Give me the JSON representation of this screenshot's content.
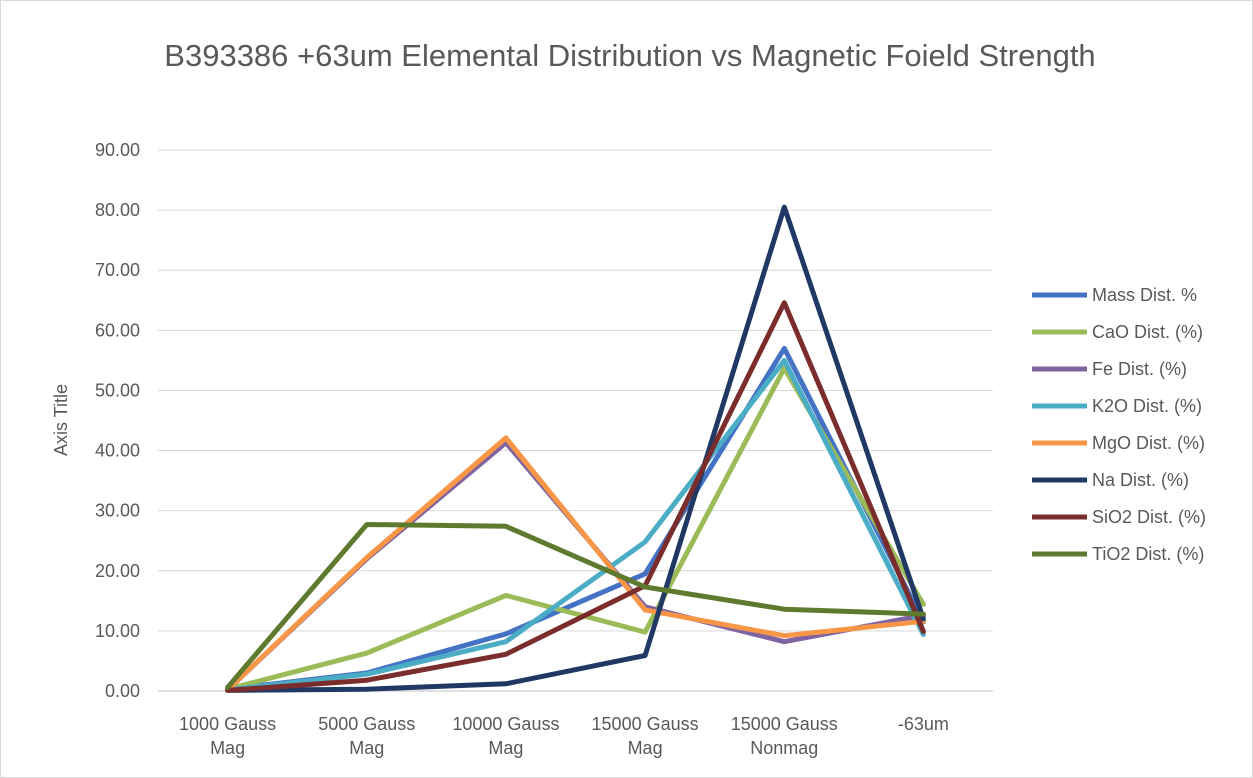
{
  "chart_data": {
    "type": "line",
    "title": "B393386 +63um Elemental Distribution vs Magnetic Foield Strength",
    "xlabel": "",
    "ylabel": "Axis Title",
    "ylim": [
      0,
      90
    ],
    "y_ticks": [
      "0.00",
      "10.00",
      "20.00",
      "30.00",
      "40.00",
      "50.00",
      "60.00",
      "70.00",
      "80.00",
      "90.00"
    ],
    "grid": true,
    "legend_position": "right",
    "categories": [
      [
        "1000 Gauss",
        "Mag"
      ],
      [
        "5000 Gauss",
        "Mag"
      ],
      [
        "10000 Gauss",
        "Mag"
      ],
      [
        "15000 Gauss",
        "Mag"
      ],
      [
        "15000 Gauss",
        "Nonmag"
      ],
      [
        "-63um"
      ]
    ],
    "series": [
      {
        "name": "Mass Dist. %",
        "color": "#4472c4",
        "values": [
          0.3,
          3.0,
          9.5,
          19.5,
          57.0,
          11.5
        ]
      },
      {
        "name": "CaO Dist. (%)",
        "color": "#9bbb59",
        "values": [
          0.3,
          6.3,
          15.9,
          9.8,
          53.7,
          14.4
        ]
      },
      {
        "name": "Fe Dist. (%)",
        "color": "#8064a2",
        "values": [
          0.2,
          22.0,
          41.3,
          14.0,
          8.2,
          12.6
        ]
      },
      {
        "name": "K2O Dist. (%)",
        "color": "#4bacc6",
        "values": [
          0.2,
          2.8,
          8.2,
          24.8,
          55.0,
          9.4
        ]
      },
      {
        "name": "MgO Dist. (%)",
        "color": "#f79646",
        "values": [
          0.2,
          22.2,
          42.1,
          13.5,
          9.2,
          11.6
        ]
      },
      {
        "name": "Na Dist. (%)",
        "color": "#1f3864",
        "values": [
          0.1,
          0.3,
          1.2,
          5.9,
          80.5,
          12.0
        ]
      },
      {
        "name": "SiO2 Dist. (%)",
        "color": "#7b2c2c",
        "values": [
          0.1,
          1.8,
          6.1,
          17.5,
          64.6,
          9.9
        ]
      },
      {
        "name": "TiO2 Dist. (%)",
        "color": "#5e7a2f",
        "values": [
          0.6,
          27.7,
          27.4,
          17.3,
          13.6,
          12.8
        ]
      }
    ]
  }
}
